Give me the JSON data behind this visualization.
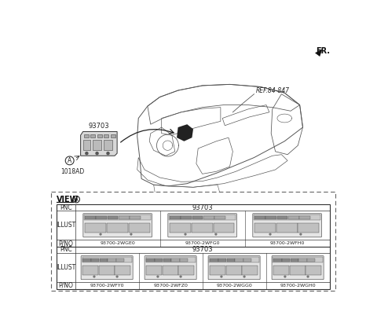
{
  "fr_label": "FR.",
  "ref_label": "REF.84-847",
  "label_93703": "93703",
  "label_A": "A",
  "label_1018AD": "1018AD",
  "row1_pnc": "93703",
  "row1_parts": [
    "93700-2WGE0",
    "93700-2WFG0",
    "93700-2WFH0"
  ],
  "row2_pnc": "93703",
  "row2_parts": [
    "93700-2WFY0",
    "93700-2WFZ0",
    "93700-2WGG0",
    "93700-2WGH0"
  ],
  "bg_color": "#ffffff",
  "gray_line": "#555555",
  "dark_line": "#222222",
  "table_border": "#444444"
}
